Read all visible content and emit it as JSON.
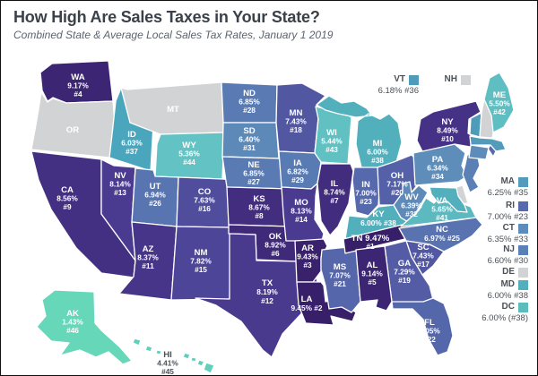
{
  "header": {
    "title": "How High Are Sales Taxes in Your State?",
    "subtitle": "Combined State & Average Local Sales Tax Rates, January 1 2019"
  },
  "colors": {
    "background": "#ffffff",
    "frame_border": "#111111",
    "title_text": "#3a4149",
    "subtitle_text": "#5d646d",
    "no_tax_gray": "#d2d3d5",
    "state_border": "#ffffff",
    "map_label": "#ffffff",
    "outside_label": "#4b5157"
  },
  "states": {
    "WA": {
      "lines": [
        "WA",
        "9.17%",
        "#4"
      ],
      "color": "#3c2573"
    },
    "OR": {
      "lines": [
        "OR"
      ],
      "color": "#d2d3d5"
    },
    "CA": {
      "lines": [
        "CA",
        "8.56%",
        "#9"
      ],
      "color": "#443082"
    },
    "NV": {
      "lines": [
        "NV",
        "8.14%",
        "#13"
      ],
      "color": "#4a3b90"
    },
    "ID": {
      "lines": [
        "ID",
        "6.03%",
        "#37"
      ],
      "color": "#4aa6bd"
    },
    "MT": {
      "lines": [
        "MT"
      ],
      "color": "#d2d3d5"
    },
    "WY": {
      "lines": [
        "WY",
        "5.36%",
        "#44"
      ],
      "color": "#63c3c4"
    },
    "UT": {
      "lines": [
        "UT",
        "6.94%",
        "#26"
      ],
      "color": "#5875b1"
    },
    "CO": {
      "lines": [
        "CO",
        "7.63%",
        "#16"
      ],
      "color": "#4f4d9c"
    },
    "AZ": {
      "lines": [
        "AZ",
        "8.37%",
        "#11"
      ],
      "color": "#47358a"
    },
    "NM": {
      "lines": [
        "NM",
        "7.82%",
        "#15"
      ],
      "color": "#4d4597"
    },
    "ND": {
      "lines": [
        "ND",
        "6.85%",
        "#28"
      ],
      "color": "#597ab3"
    },
    "SD": {
      "lines": [
        "SD",
        "6.40%",
        "#31"
      ],
      "color": "#5d89b9"
    },
    "NE": {
      "lines": [
        "NE",
        "6.85%",
        "#27"
      ],
      "color": "#597ab3"
    },
    "KS": {
      "lines": [
        "KS",
        "8.67%",
        "#8"
      ],
      "color": "#422d7f"
    },
    "OK": {
      "lines": [
        "OK",
        "8.92%",
        "#6"
      ],
      "color": "#3f2979"
    },
    "TX": {
      "lines": [
        "TX",
        "8.19%",
        "#12"
      ],
      "color": "#493a8e"
    },
    "MN": {
      "lines": [
        "MN",
        "7.43%",
        "#18"
      ],
      "color": "#5257a2"
    },
    "IA": {
      "lines": [
        "IA",
        "6.82%",
        "#29"
      ],
      "color": "#597bb3"
    },
    "MO": {
      "lines": [
        "MO",
        "8.13%",
        "#14"
      ],
      "color": "#4a3b90"
    },
    "AR": {
      "lines": [
        "AR",
        "9.43%",
        "#3"
      ],
      "color": "#39216c"
    },
    "LA": {
      "lines": [
        "LA",
        "9.45% #2"
      ],
      "color": "#381f6a"
    },
    "WI": {
      "lines": [
        "WI",
        "5.44%",
        "#43"
      ],
      "color": "#60c0c2"
    },
    "IL": {
      "lines": [
        "IL",
        "8.74%",
        "#7"
      ],
      "color": "#412c7d"
    },
    "MS": {
      "lines": [
        "MS",
        "7.07%",
        "#21"
      ],
      "color": "#5566aa"
    },
    "MI": {
      "lines": [
        "MI",
        "6.00%",
        "#38"
      ],
      "color": "#52b0bd"
    },
    "IN": {
      "lines": [
        "IN",
        "7.00%",
        "#23"
      ],
      "color": "#5669ac"
    },
    "OH": {
      "lines": [
        "OH",
        "7.17%",
        "#20"
      ],
      "color": "#5460a7"
    },
    "KY": {
      "lines": [
        "KY",
        "6.00% #38"
      ],
      "color": "#52b0bd"
    },
    "TN": {
      "lines": [
        "TN 9.47%",
        "#1"
      ],
      "color": "#371e68"
    },
    "WV": {
      "lines": [
        "WV",
        "6.39%",
        "#32"
      ],
      "color": "#5d8ab9"
    },
    "VA": {
      "lines": [
        "VA",
        "5.65%",
        "#41"
      ],
      "color": "#5bb9bf"
    },
    "NC": {
      "lines": [
        "NC",
        "6.97% #25"
      ],
      "color": "#5873b0"
    },
    "SC": {
      "lines": [
        "SC",
        "7.43%",
        "#17"
      ],
      "color": "#5257a2"
    },
    "GA": {
      "lines": [
        "GA",
        "7.29%",
        "#19"
      ],
      "color": "#535ca5"
    },
    "AL": {
      "lines": [
        "AL",
        "9.14%",
        "#5"
      ],
      "color": "#3c2573"
    },
    "FL": {
      "lines": [
        "FL",
        "7.05%",
        "#22"
      ],
      "color": "#5567ab"
    },
    "NY": {
      "lines": [
        "NY",
        "8.49%",
        "#10"
      ],
      "color": "#453185"
    },
    "PA": {
      "lines": [
        "PA",
        "6.34%",
        "#34"
      ],
      "color": "#5e8dba"
    },
    "ME": {
      "lines": [
        "ME",
        "5.50%",
        "#42"
      ],
      "color": "#5ebec1"
    },
    "VT": {
      "lines": [],
      "color": "#4f9cba"
    },
    "NH": {
      "lines": [],
      "color": "#d2d3d5"
    },
    "MA": {
      "lines": [],
      "color": "#539bba"
    },
    "RI": {
      "lines": [],
      "color": "#5669ac"
    },
    "CT": {
      "lines": [],
      "color": "#5e8cba"
    },
    "NJ": {
      "lines": [],
      "color": "#5a80b6"
    },
    "DE": {
      "lines": [],
      "color": "#d2d3d5"
    },
    "MD": {
      "lines": [],
      "color": "#52b0bd"
    },
    "AK": {
      "lines": [
        "AK",
        "1.43%",
        "#46"
      ],
      "color": "#67d7b9"
    },
    "HI": {
      "lines": [
        "HI",
        "4.41%",
        "#45"
      ],
      "color": "#62cfbd",
      "dark_label": true
    }
  },
  "callouts": {
    "vt": {
      "label": "VT",
      "rate": "6.18% #36",
      "color": "#4f9cba"
    },
    "nh": {
      "label": "NH",
      "rate": "",
      "color": "#d2d3d5"
    },
    "right": [
      {
        "label": "MA",
        "rate": "6.25% #35",
        "color": "#539bba"
      },
      {
        "label": "RI",
        "rate": "7.00% #23",
        "color": "#5669ac"
      },
      {
        "label": "CT",
        "rate": "6.35% #33",
        "color": "#5e8cba"
      },
      {
        "label": "NJ",
        "rate": "6.60% #30",
        "color": "#5a80b6"
      },
      {
        "label": "DE",
        "rate": "",
        "color": "#d2d3d5"
      },
      {
        "label": "MD",
        "rate": "6.00% #38",
        "color": "#52b0bd"
      },
      {
        "label": "DC",
        "rate": "6.00% (#38)",
        "color": "#5bbdb9"
      }
    ]
  }
}
